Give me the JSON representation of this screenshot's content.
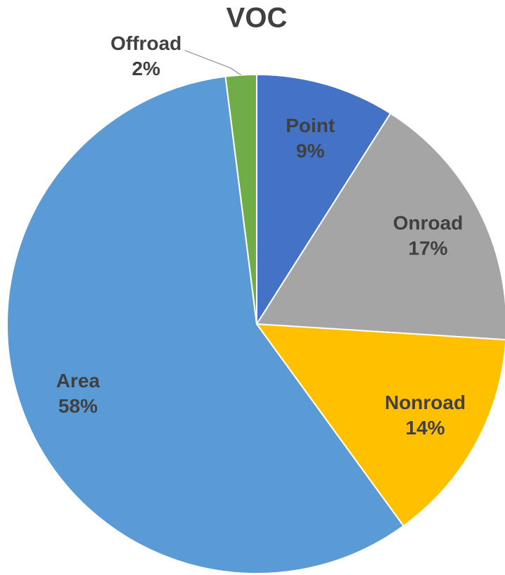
{
  "chart_data": {
    "type": "pie",
    "title": "VOC",
    "categories": [
      "Point",
      "Onroad",
      "Nonroad",
      "Area",
      "Offroad"
    ],
    "values": [
      9,
      17,
      14,
      58,
      2
    ],
    "value_labels": [
      "9%",
      "17%",
      "14%",
      "58%",
      "2%"
    ],
    "colors": [
      "#4472c4",
      "#a5a5a5",
      "#ffc000",
      "#5b9bd5",
      "#70ad47"
    ]
  }
}
